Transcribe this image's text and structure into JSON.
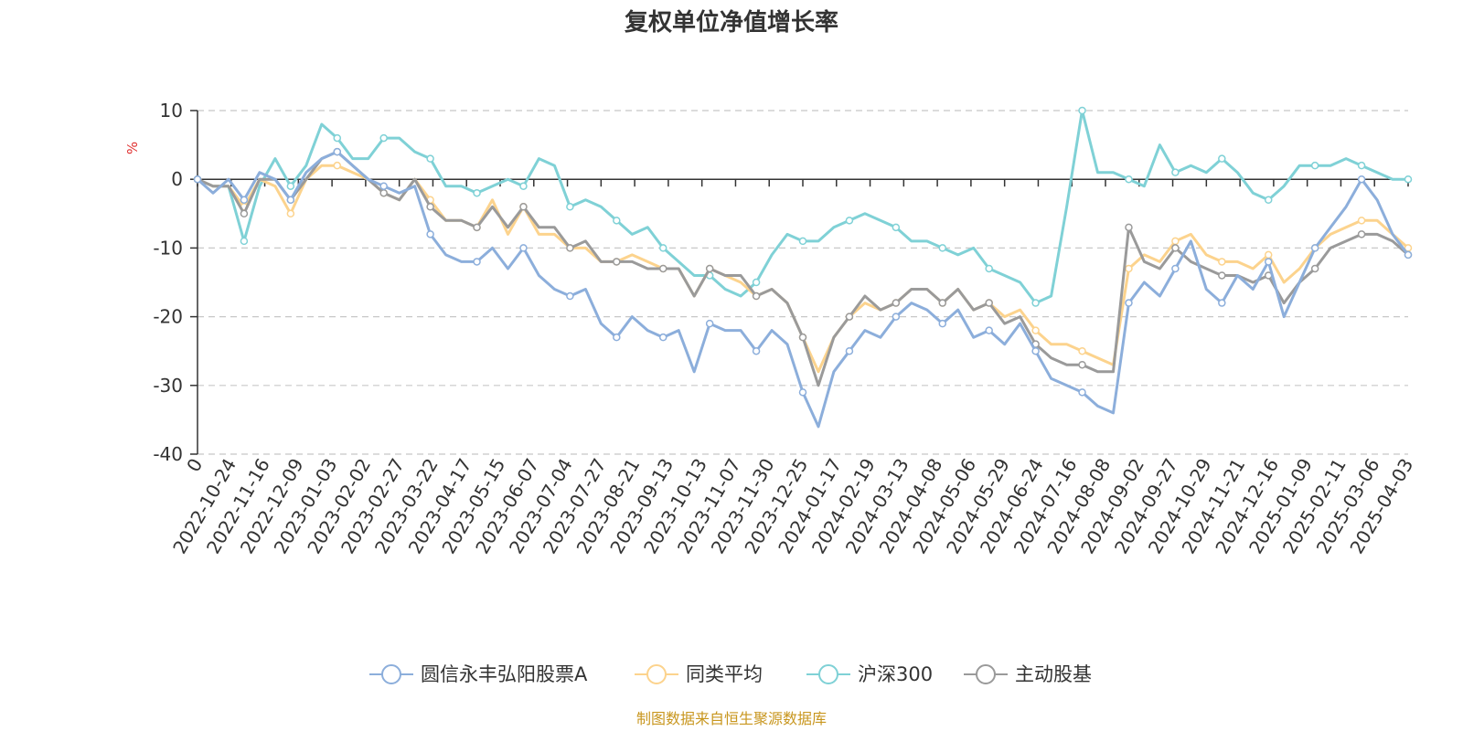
{
  "chart_data": {
    "type": "line",
    "title": "复权单位净值增长率",
    "ylabel": "%",
    "ylim": [
      -40,
      10
    ],
    "yticks": [
      10,
      0,
      -10,
      -20,
      -30,
      -40
    ],
    "grid": "dashed-horizontal",
    "legend_position": "bottom",
    "x_tick_labels": [
      "0",
      "2022-10-24",
      "2022-11-16",
      "2022-12-09",
      "2023-01-03",
      "2023-02-02",
      "2023-02-27",
      "2023-03-22",
      "2023-04-17",
      "2023-05-15",
      "2023-06-07",
      "2023-07-04",
      "2023-07-27",
      "2023-08-21",
      "2023-09-13",
      "2023-10-13",
      "2023-11-07",
      "2023-11-30",
      "2023-12-25",
      "2024-01-17",
      "2024-02-19",
      "2024-03-13",
      "2024-04-08",
      "2024-05-06",
      "2024-05-29",
      "2024-06-24",
      "2024-07-16",
      "2024-08-08",
      "2024-09-02",
      "2024-09-27",
      "2024-10-29",
      "2024-11-21",
      "2024-12-16",
      "2025-01-09",
      "2025-02-11",
      "2025-03-06",
      "2025-04-03"
    ],
    "series": [
      {
        "name": "圆信永丰弘阳股票A",
        "color": "#8caedb",
        "values": [
          0,
          -2,
          0,
          -3,
          1,
          0,
          -3,
          1,
          3,
          4,
          2,
          0,
          -1,
          -2,
          -1,
          -8,
          -11,
          -12,
          -12,
          -10,
          -13,
          -10,
          -14,
          -16,
          -17,
          -16,
          -21,
          -23,
          -20,
          -22,
          -23,
          -22,
          -28,
          -21,
          -22,
          -22,
          -25,
          -22,
          -24,
          -31,
          -36,
          -28,
          -25,
          -22,
          -23,
          -20,
          -18,
          -19,
          -21,
          -19,
          -23,
          -22,
          -24,
          -21,
          -25,
          -29,
          -30,
          -31,
          -33,
          -34,
          -18,
          -15,
          -17,
          -13,
          -9,
          -16,
          -18,
          -14,
          -16,
          -12,
          -20,
          -15,
          -10,
          -7,
          -4,
          0,
          -3,
          -8,
          -11
        ]
      },
      {
        "name": "同类平均",
        "color": "#fcd38d",
        "values": [
          0,
          -1,
          -1,
          -4,
          0,
          -1,
          -5,
          0,
          2,
          2,
          1,
          0,
          -2,
          -3,
          0,
          -3,
          -6,
          -6,
          -7,
          -3,
          -8,
          -4,
          -8,
          -8,
          -10,
          -10,
          -12,
          -12,
          -11,
          -12,
          -13,
          -13,
          -17,
          -13,
          -14,
          -15,
          -17,
          -16,
          -18,
          -23,
          -28,
          -23,
          -20,
          -18,
          -19,
          -18,
          -16,
          -16,
          -18,
          -16,
          -19,
          -18,
          -20,
          -19,
          -22,
          -24,
          -24,
          -25,
          -26,
          -27,
          -13,
          -11,
          -12,
          -9,
          -8,
          -11,
          -12,
          -12,
          -13,
          -11,
          -15,
          -13,
          -10,
          -8,
          -7,
          -6,
          -6,
          -8,
          -10
        ]
      },
      {
        "name": "沪深300",
        "color": "#7fd1d6",
        "values": [
          0,
          -1,
          -1,
          -9,
          -1,
          3,
          -1,
          2,
          8,
          6,
          3,
          3,
          6,
          6,
          4,
          3,
          -1,
          -1,
          -2,
          -1,
          0,
          -1,
          3,
          2,
          -4,
          -3,
          -4,
          -6,
          -8,
          -7,
          -10,
          -12,
          -14,
          -14,
          -16,
          -17,
          -15,
          -11,
          -8,
          -9,
          -9,
          -7,
          -6,
          -5,
          -6,
          -7,
          -9,
          -9,
          -10,
          -11,
          -10,
          -13,
          -14,
          -15,
          -18,
          -17,
          -4,
          10,
          1,
          1,
          0,
          -1,
          5,
          1,
          2,
          1,
          3,
          1,
          -2,
          -3,
          -1,
          2,
          2,
          2,
          3,
          2,
          1,
          0,
          0
        ]
      },
      {
        "name": "主动股基",
        "color": "#9a9a9a",
        "values": [
          0,
          -1,
          -1,
          -5,
          0,
          0,
          -3,
          0,
          3,
          4,
          2,
          0,
          -2,
          -3,
          0,
          -4,
          -6,
          -6,
          -7,
          -4,
          -7,
          -4,
          -7,
          -7,
          -10,
          -9,
          -12,
          -12,
          -12,
          -13,
          -13,
          -13,
          -17,
          -13,
          -14,
          -14,
          -17,
          -16,
          -18,
          -23,
          -30,
          -23,
          -20,
          -17,
          -19,
          -18,
          -16,
          -16,
          -18,
          -16,
          -19,
          -18,
          -21,
          -20,
          -24,
          -26,
          -27,
          -27,
          -28,
          -28,
          -7,
          -12,
          -13,
          -10,
          -12,
          -13,
          -14,
          -14,
          -15,
          -14,
          -18,
          -15,
          -13,
          -10,
          -9,
          -8,
          -8,
          -9,
          -11
        ]
      }
    ]
  },
  "source_note": "制图数据来自恒生聚源数据库"
}
